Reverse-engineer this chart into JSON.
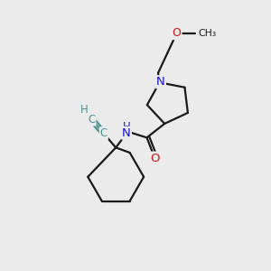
{
  "bg_color": "#ebebeb",
  "bond_color": "#1a1a1a",
  "N_color": "#1414cc",
  "O_color": "#cc1414",
  "alkyne_color": "#4a9090",
  "line_width": 1.6,
  "fig_size": [
    3.0,
    3.0
  ],
  "dpi": 100,
  "xlim": [
    0,
    10
  ],
  "ylim": [
    0,
    10
  ]
}
